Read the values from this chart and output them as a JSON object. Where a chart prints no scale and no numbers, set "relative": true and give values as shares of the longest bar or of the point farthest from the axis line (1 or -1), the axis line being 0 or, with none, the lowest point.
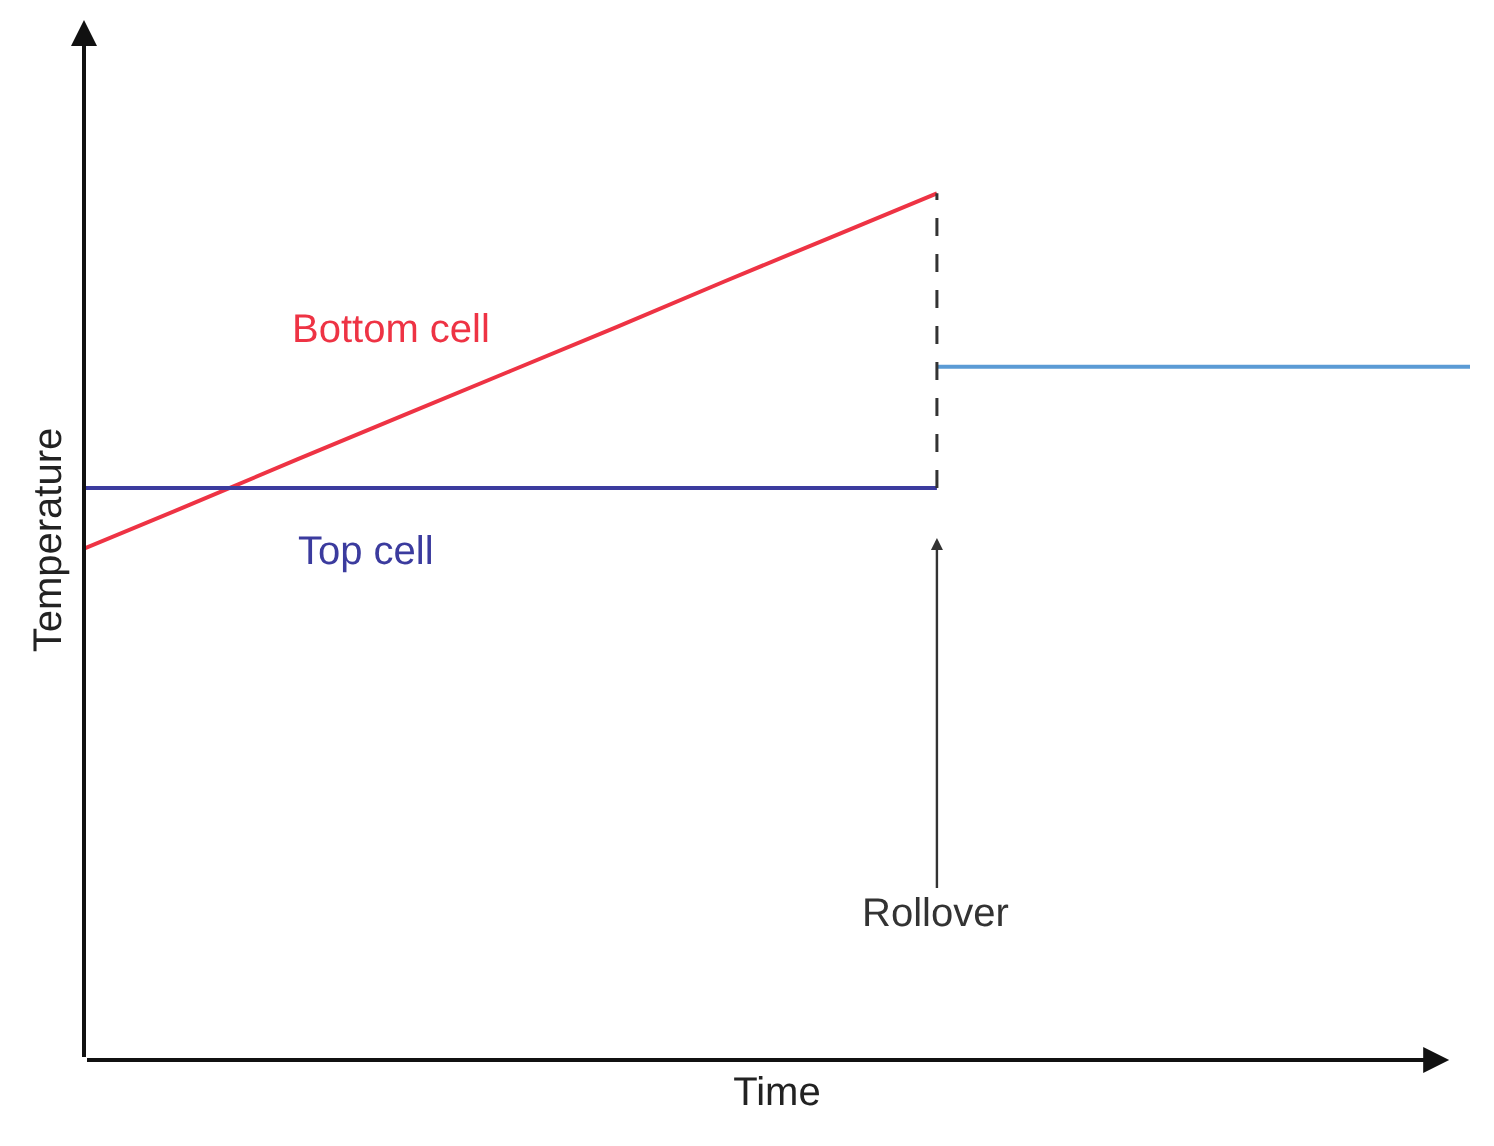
{
  "chart_data": {
    "type": "line",
    "relative": true,
    "xlabel": "Time",
    "ylabel": "Temperature",
    "categories": [
      null,
      null,
      null,
      null,
      null,
      null,
      null,
      null,
      null,
      null,
      null,
      null,
      null,
      null
    ],
    "series": [
      {
        "name": "Bottom cell",
        "color": "#ee3344",
        "values": [
          0.59,
          0.641,
          0.693,
          0.744,
          0.795,
          0.846,
          0.898,
          0.949,
          1,
          null,
          null,
          null,
          null,
          null
        ]
      },
      {
        "name": "Top cell",
        "color": "#3b3b9e",
        "values": [
          0.66,
          0.66,
          0.66,
          0.66,
          0.66,
          0.66,
          0.66,
          0.66,
          0.66,
          null,
          null,
          null,
          null,
          null
        ]
      },
      {
        "color": "#5b9bd5",
        "values": [
          null,
          null,
          null,
          null,
          null,
          null,
          null,
          null,
          0.8,
          0.8,
          0.8,
          0.8,
          0.8,
          0.8
        ]
      }
    ],
    "annotations": [
      "Rollover"
    ],
    "grid": false,
    "legend": false,
    "marker": "none",
    "line_style": "solid"
  }
}
